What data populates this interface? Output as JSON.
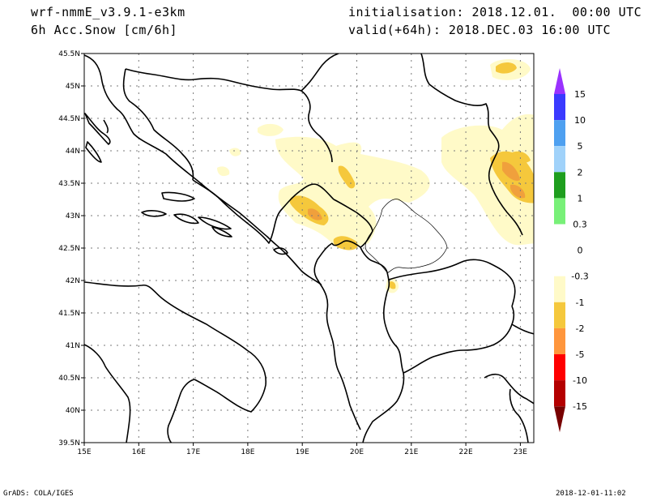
{
  "header": {
    "model": "wrf-nmmE_v3.9.1-e3km",
    "field": "6h Acc.Snow [cm/6h]",
    "init": "initialisation: 2018.12.01.  00:00 UTC",
    "valid": "valid(+64h): 2018.DEC.03 16:00 UTC"
  },
  "footer": {
    "credit": "GrADS: COLA/IGES",
    "timestamp": "2018-12-01-11:02"
  },
  "axes": {
    "lat_labels": [
      "45.5N",
      "45N",
      "44.5N",
      "44N",
      "43.5N",
      "43N",
      "42.5N",
      "42N",
      "41.5N",
      "41N",
      "40.5N",
      "40N",
      "39.5N"
    ],
    "lon_labels": [
      "15E",
      "16E",
      "17E",
      "18E",
      "19E",
      "20E",
      "21E",
      "22E",
      "23E"
    ]
  },
  "colorbar": {
    "labels": [
      "15",
      "10",
      "5",
      "2",
      "1",
      "0.3",
      "0",
      "-0.3",
      "-1",
      "-2",
      "-5",
      "-10",
      "-15"
    ],
    "colors": [
      "#9a32ff",
      "#3a3aff",
      "#4ea0f0",
      "#a0d2fa",
      "#1e9e1e",
      "#78f078",
      "#ffffff",
      "#ffffff",
      "#fffac8",
      "#f5c83c",
      "#ff963c",
      "#ff0000",
      "#b40000",
      "#780000"
    ]
  },
  "snow_colors": {
    "light": "#fffac8",
    "medium": "#f5c83c",
    "heavy": "#f0a03c"
  }
}
